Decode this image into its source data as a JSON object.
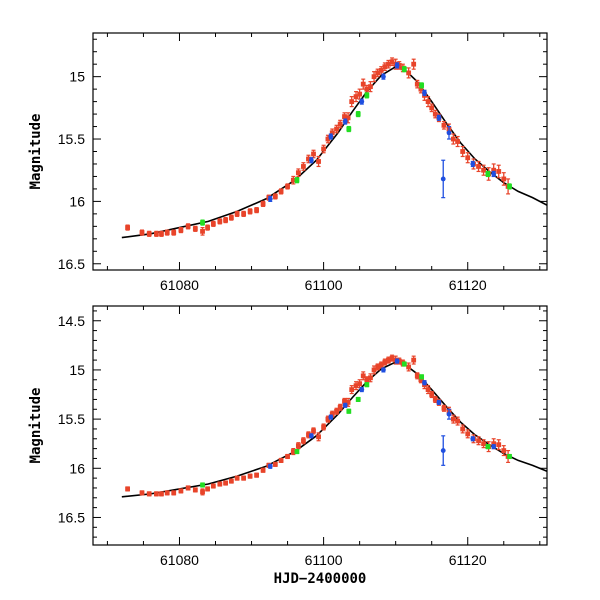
{
  "chart_data": [
    {
      "type": "scatter",
      "panel": "top",
      "xlabel": "",
      "ylabel": "Magnitude",
      "xlim": [
        61068,
        61131
      ],
      "ylim": [
        16.55,
        14.65
      ],
      "xticks": [
        61080,
        61100,
        61120
      ],
      "xtick_labels": [
        "61080",
        "61100",
        "61120"
      ],
      "yticks": [
        15,
        15.5,
        16,
        16.5
      ],
      "ytick_labels": [
        "15",
        "15.5",
        "16",
        "16.5"
      ],
      "model": {
        "name": "model",
        "color": "#000000",
        "x": [
          61072,
          61076,
          61080,
          61084,
          61088,
          61092,
          61096,
          61099,
          61102,
          61104,
          61106,
          61108,
          61110,
          61111,
          61113,
          61115,
          61117,
          61119,
          61121,
          61123,
          61125,
          61127,
          61129,
          61131
        ],
        "y": [
          16.29,
          16.26,
          16.21,
          16.16,
          16.08,
          15.98,
          15.83,
          15.67,
          15.45,
          15.28,
          15.12,
          14.99,
          14.92,
          14.93,
          15.04,
          15.2,
          15.37,
          15.53,
          15.66,
          15.76,
          15.85,
          15.92,
          15.97,
          16.03
        ]
      },
      "series": [
        {
          "name": "red",
          "color": "#e8442a",
          "x": [
            61072.8,
            61074.8,
            61075.8,
            61076.8,
            61077.5,
            61078.3,
            61079.2,
            61080.2,
            61081.2,
            61082.2,
            61083.2,
            61083.9,
            61084.7,
            61085.6,
            61086.4,
            61087.2,
            61088.0,
            61088.9,
            61089.8,
            61090.7,
            61091.6,
            61092.4,
            61093.3,
            61094.1,
            61095.0,
            61095.8,
            61096.5,
            61097.2,
            61097.9,
            61098.6,
            61099.3,
            61100.0,
            61100.6,
            61101.2,
            61101.8,
            61102.3,
            61102.9,
            61103.4,
            61103.9,
            61104.5,
            61105.0,
            61105.5,
            61106.0,
            61106.5,
            61107.0,
            61107.5,
            61108.0,
            61108.5,
            61109.0,
            61109.5,
            61110.0,
            61110.5,
            61111.0,
            61111.8,
            61112.5,
            61113.0,
            61113.5,
            61114.0,
            61114.5,
            61115.0,
            61115.5,
            61116.0,
            61116.7,
            61117.4,
            61118.0,
            61118.6,
            61119.3,
            61120.0,
            61120.8,
            61121.5,
            61122.2,
            61122.9,
            61123.6,
            61124.3,
            61125.0,
            61125.6
          ],
          "y": [
            16.21,
            16.25,
            16.26,
            16.26,
            16.26,
            16.25,
            16.25,
            16.23,
            16.2,
            16.22,
            16.24,
            16.21,
            16.18,
            16.16,
            16.15,
            16.13,
            16.1,
            16.1,
            16.08,
            16.07,
            16.02,
            15.97,
            15.96,
            15.92,
            15.88,
            15.83,
            15.77,
            15.72,
            15.66,
            15.62,
            15.68,
            15.58,
            15.5,
            15.45,
            15.42,
            15.38,
            15.32,
            15.33,
            15.2,
            15.16,
            15.14,
            15.06,
            15.1,
            15.08,
            15.0,
            14.97,
            14.95,
            14.92,
            14.9,
            14.88,
            14.9,
            14.91,
            14.93,
            14.97,
            14.9,
            15.06,
            15.1,
            15.15,
            15.2,
            15.25,
            15.3,
            15.33,
            15.39,
            15.42,
            15.5,
            15.52,
            15.6,
            15.65,
            15.7,
            15.72,
            15.75,
            15.78,
            15.75,
            15.76,
            15.82,
            15.88
          ],
          "err": [
            0.02,
            0.02,
            0.02,
            0.02,
            0.02,
            0.02,
            0.02,
            0.02,
            0.02,
            0.02,
            0.03,
            0.02,
            0.02,
            0.02,
            0.02,
            0.02,
            0.02,
            0.02,
            0.02,
            0.02,
            0.02,
            0.02,
            0.02,
            0.02,
            0.02,
            0.03,
            0.03,
            0.03,
            0.03,
            0.03,
            0.04,
            0.03,
            0.03,
            0.03,
            0.03,
            0.03,
            0.03,
            0.04,
            0.04,
            0.04,
            0.04,
            0.04,
            0.03,
            0.04,
            0.04,
            0.03,
            0.03,
            0.03,
            0.03,
            0.03,
            0.04,
            0.03,
            0.03,
            0.04,
            0.04,
            0.03,
            0.03,
            0.04,
            0.04,
            0.03,
            0.03,
            0.03,
            0.03,
            0.04,
            0.04,
            0.04,
            0.04,
            0.04,
            0.04,
            0.04,
            0.04,
            0.05,
            0.05,
            0.05,
            0.05,
            0.06
          ]
        },
        {
          "name": "green",
          "color": "#22dd22",
          "x": [
            61083.2,
            61096.3,
            61103.5,
            61104.8,
            61106.0,
            61111.2,
            61113.6,
            61122.8,
            61125.8
          ],
          "y": [
            16.17,
            15.83,
            15.42,
            15.3,
            15.15,
            14.94,
            15.07,
            15.78,
            15.88
          ],
          "err": [
            0.02,
            0.02,
            0.02,
            0.02,
            0.02,
            0.02,
            0.02,
            0.02,
            0.02
          ]
        },
        {
          "name": "blue",
          "color": "#1f4fe0",
          "x": [
            61092.6,
            61098.3,
            61101.0,
            61103.0,
            61105.3,
            61108.3,
            61110.2,
            61114.0,
            61116.0,
            61117.4,
            61120.7,
            61123.6,
            61116.6
          ],
          "y": [
            15.98,
            15.67,
            15.48,
            15.36,
            15.2,
            15.0,
            14.91,
            15.13,
            15.33,
            15.45,
            15.7,
            15.78,
            15.82
          ],
          "err": [
            0.02,
            0.02,
            0.02,
            0.02,
            0.02,
            0.02,
            0.02,
            0.02,
            0.02,
            0.05,
            0.02,
            0.02,
            0.15
          ]
        }
      ]
    },
    {
      "type": "scatter",
      "panel": "bottom",
      "xlabel": "HJD−2400000",
      "ylabel": "Magnitude",
      "xlim": [
        61068,
        61131
      ],
      "ylim": [
        16.78,
        14.35
      ],
      "xticks": [
        61080,
        61100,
        61120
      ],
      "xtick_labels": [
        "61080",
        "61100",
        "61120"
      ],
      "yticks": [
        14.5,
        15,
        15.5,
        16,
        16.5
      ],
      "ytick_labels": [
        "14.5",
        "15",
        "15.5",
        "16",
        "16.5"
      ],
      "model": {
        "name": "model",
        "color": "#000000",
        "x": [
          61072,
          61076,
          61080,
          61084,
          61088,
          61092,
          61096,
          61099,
          61102,
          61104,
          61106,
          61108,
          61110,
          61111,
          61113,
          61115,
          61117,
          61119,
          61121,
          61123,
          61125,
          61127,
          61129,
          61131
        ],
        "y": [
          16.29,
          16.26,
          16.21,
          16.16,
          16.08,
          15.98,
          15.83,
          15.67,
          15.45,
          15.28,
          15.12,
          14.99,
          14.92,
          14.93,
          15.04,
          15.2,
          15.37,
          15.53,
          15.66,
          15.76,
          15.85,
          15.92,
          15.97,
          16.03
        ]
      },
      "series": [
        {
          "name": "red",
          "color": "#e8442a",
          "x": [
            61072.8,
            61074.8,
            61075.8,
            61076.8,
            61077.5,
            61078.3,
            61079.2,
            61080.2,
            61081.2,
            61082.2,
            61083.2,
            61083.9,
            61084.7,
            61085.6,
            61086.4,
            61087.2,
            61088.0,
            61088.9,
            61089.8,
            61090.7,
            61091.6,
            61092.4,
            61093.3,
            61094.1,
            61095.0,
            61095.8,
            61096.5,
            61097.2,
            61097.9,
            61098.6,
            61099.3,
            61100.0,
            61100.6,
            61101.2,
            61101.8,
            61102.3,
            61102.9,
            61103.4,
            61103.9,
            61104.5,
            61105.0,
            61105.5,
            61106.0,
            61106.5,
            61107.0,
            61107.5,
            61108.0,
            61108.5,
            61109.0,
            61109.5,
            61110.0,
            61110.5,
            61111.0,
            61111.8,
            61112.5,
            61113.0,
            61113.5,
            61114.0,
            61114.5,
            61115.0,
            61115.5,
            61116.0,
            61116.7,
            61117.4,
            61118.0,
            61118.6,
            61119.3,
            61120.0,
            61120.8,
            61121.5,
            61122.2,
            61122.9,
            61123.6,
            61124.3,
            61125.0,
            61125.6
          ],
          "y": [
            16.21,
            16.25,
            16.26,
            16.26,
            16.26,
            16.25,
            16.25,
            16.23,
            16.2,
            16.22,
            16.24,
            16.21,
            16.18,
            16.16,
            16.15,
            16.13,
            16.1,
            16.1,
            16.08,
            16.07,
            16.02,
            15.97,
            15.96,
            15.92,
            15.88,
            15.83,
            15.77,
            15.72,
            15.66,
            15.62,
            15.68,
            15.58,
            15.5,
            15.45,
            15.42,
            15.38,
            15.32,
            15.33,
            15.2,
            15.16,
            15.14,
            15.06,
            15.1,
            15.08,
            15.0,
            14.97,
            14.95,
            14.92,
            14.9,
            14.88,
            14.9,
            14.91,
            14.93,
            14.97,
            14.9,
            15.06,
            15.1,
            15.15,
            15.2,
            15.25,
            15.3,
            15.33,
            15.39,
            15.42,
            15.5,
            15.52,
            15.6,
            15.65,
            15.7,
            15.72,
            15.75,
            15.78,
            15.75,
            15.76,
            15.82,
            15.88
          ],
          "err": [
            0.02,
            0.02,
            0.02,
            0.02,
            0.02,
            0.02,
            0.02,
            0.02,
            0.02,
            0.02,
            0.03,
            0.02,
            0.02,
            0.02,
            0.02,
            0.02,
            0.02,
            0.02,
            0.02,
            0.02,
            0.02,
            0.02,
            0.02,
            0.02,
            0.02,
            0.03,
            0.03,
            0.03,
            0.03,
            0.03,
            0.04,
            0.03,
            0.03,
            0.03,
            0.03,
            0.03,
            0.03,
            0.04,
            0.04,
            0.04,
            0.04,
            0.04,
            0.03,
            0.04,
            0.04,
            0.03,
            0.03,
            0.03,
            0.03,
            0.03,
            0.04,
            0.03,
            0.03,
            0.04,
            0.04,
            0.03,
            0.03,
            0.04,
            0.04,
            0.03,
            0.03,
            0.03,
            0.03,
            0.04,
            0.04,
            0.04,
            0.04,
            0.04,
            0.04,
            0.04,
            0.04,
            0.05,
            0.05,
            0.05,
            0.05,
            0.06
          ]
        },
        {
          "name": "green",
          "color": "#22dd22",
          "x": [
            61083.2,
            61096.3,
            61103.5,
            61104.8,
            61106.0,
            61111.2,
            61113.6,
            61122.8,
            61125.8
          ],
          "y": [
            16.17,
            15.83,
            15.42,
            15.3,
            15.15,
            14.94,
            15.07,
            15.78,
            15.88
          ],
          "err": [
            0.02,
            0.02,
            0.02,
            0.02,
            0.02,
            0.02,
            0.02,
            0.02,
            0.02
          ]
        },
        {
          "name": "blue",
          "color": "#1f4fe0",
          "x": [
            61092.6,
            61098.3,
            61101.0,
            61103.0,
            61105.3,
            61108.3,
            61110.2,
            61114.0,
            61116.0,
            61117.4,
            61120.7,
            61123.6,
            61116.6
          ],
          "y": [
            15.98,
            15.67,
            15.48,
            15.36,
            15.2,
            15.0,
            14.91,
            15.13,
            15.33,
            15.45,
            15.7,
            15.78,
            15.82
          ],
          "err": [
            0.02,
            0.02,
            0.02,
            0.02,
            0.02,
            0.02,
            0.02,
            0.02,
            0.02,
            0.05,
            0.02,
            0.02,
            0.15
          ]
        }
      ]
    }
  ]
}
